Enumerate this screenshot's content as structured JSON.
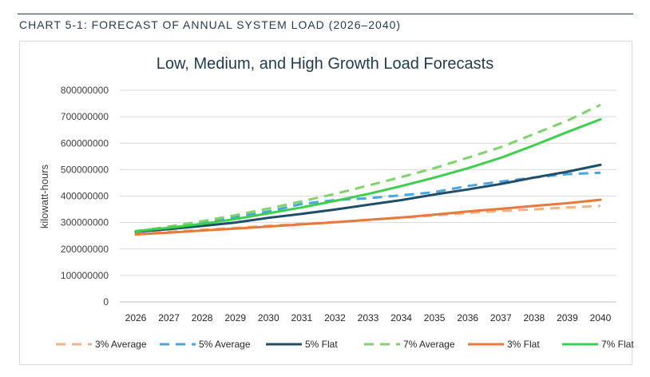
{
  "heading": "CHART 5-1: FORECAST OF ANNUAL SYSTEM LOAD (2026–2040)",
  "chart_data": {
    "type": "line",
    "title": "Low, Medium, and High Growth Load Forecasts",
    "xlabel": "",
    "ylabel": "kilowatt-hours",
    "ylim": [
      0,
      800000000
    ],
    "yticks": [
      "0",
      "100000000",
      "200000000",
      "300000000",
      "400000000",
      "500000000",
      "600000000",
      "700000000",
      "800000000"
    ],
    "grid": true,
    "legend_position": "bottom",
    "categories": [
      "2026",
      "2027",
      "2028",
      "2029",
      "2030",
      "2031",
      "2032",
      "2033",
      "2034",
      "2035",
      "2036",
      "2037",
      "2038",
      "2039",
      "2040"
    ],
    "series": [
      {
        "name": "3% Average",
        "color": "#f4b183",
        "dashed": true,
        "values": [
          255000000,
          265000000,
          273000000,
          280000000,
          288000000,
          295000000,
          302000000,
          310000000,
          318000000,
          327000000,
          336000000,
          344000000,
          350000000,
          357000000,
          363000000
        ]
      },
      {
        "name": "5% Average",
        "color": "#4aa5de",
        "dashed": true,
        "values": [
          265000000,
          282000000,
          300000000,
          320000000,
          342000000,
          370000000,
          385000000,
          392000000,
          403000000,
          415000000,
          438000000,
          455000000,
          470000000,
          483000000,
          488000000
        ]
      },
      {
        "name": "5% Flat",
        "color": "#1f4e6b",
        "dashed": false,
        "values": [
          265000000,
          275000000,
          287000000,
          300000000,
          318000000,
          333000000,
          349000000,
          367000000,
          385000000,
          406000000,
          425000000,
          446000000,
          470000000,
          492000000,
          518000000
        ]
      },
      {
        "name": "7% Average",
        "color": "#7fd36b",
        "dashed": true,
        "values": [
          266000000,
          285000000,
          305000000,
          328000000,
          353000000,
          380000000,
          408000000,
          440000000,
          472000000,
          506000000,
          545000000,
          585000000,
          635000000,
          685000000,
          745000000
        ]
      },
      {
        "name": "3% Flat",
        "color": "#e57a3a",
        "dashed": false,
        "values": [
          255000000,
          262000000,
          270000000,
          277000000,
          285000000,
          293000000,
          301000000,
          310000000,
          319000000,
          330000000,
          342000000,
          352000000,
          363000000,
          373000000,
          386000000
        ]
      },
      {
        "name": "7% Flat",
        "color": "#3ecf4f",
        "dashed": false,
        "values": [
          268000000,
          280000000,
          295000000,
          313000000,
          335000000,
          357000000,
          382000000,
          408000000,
          438000000,
          470000000,
          505000000,
          545000000,
          592000000,
          642000000,
          690000000
        ]
      }
    ]
  }
}
